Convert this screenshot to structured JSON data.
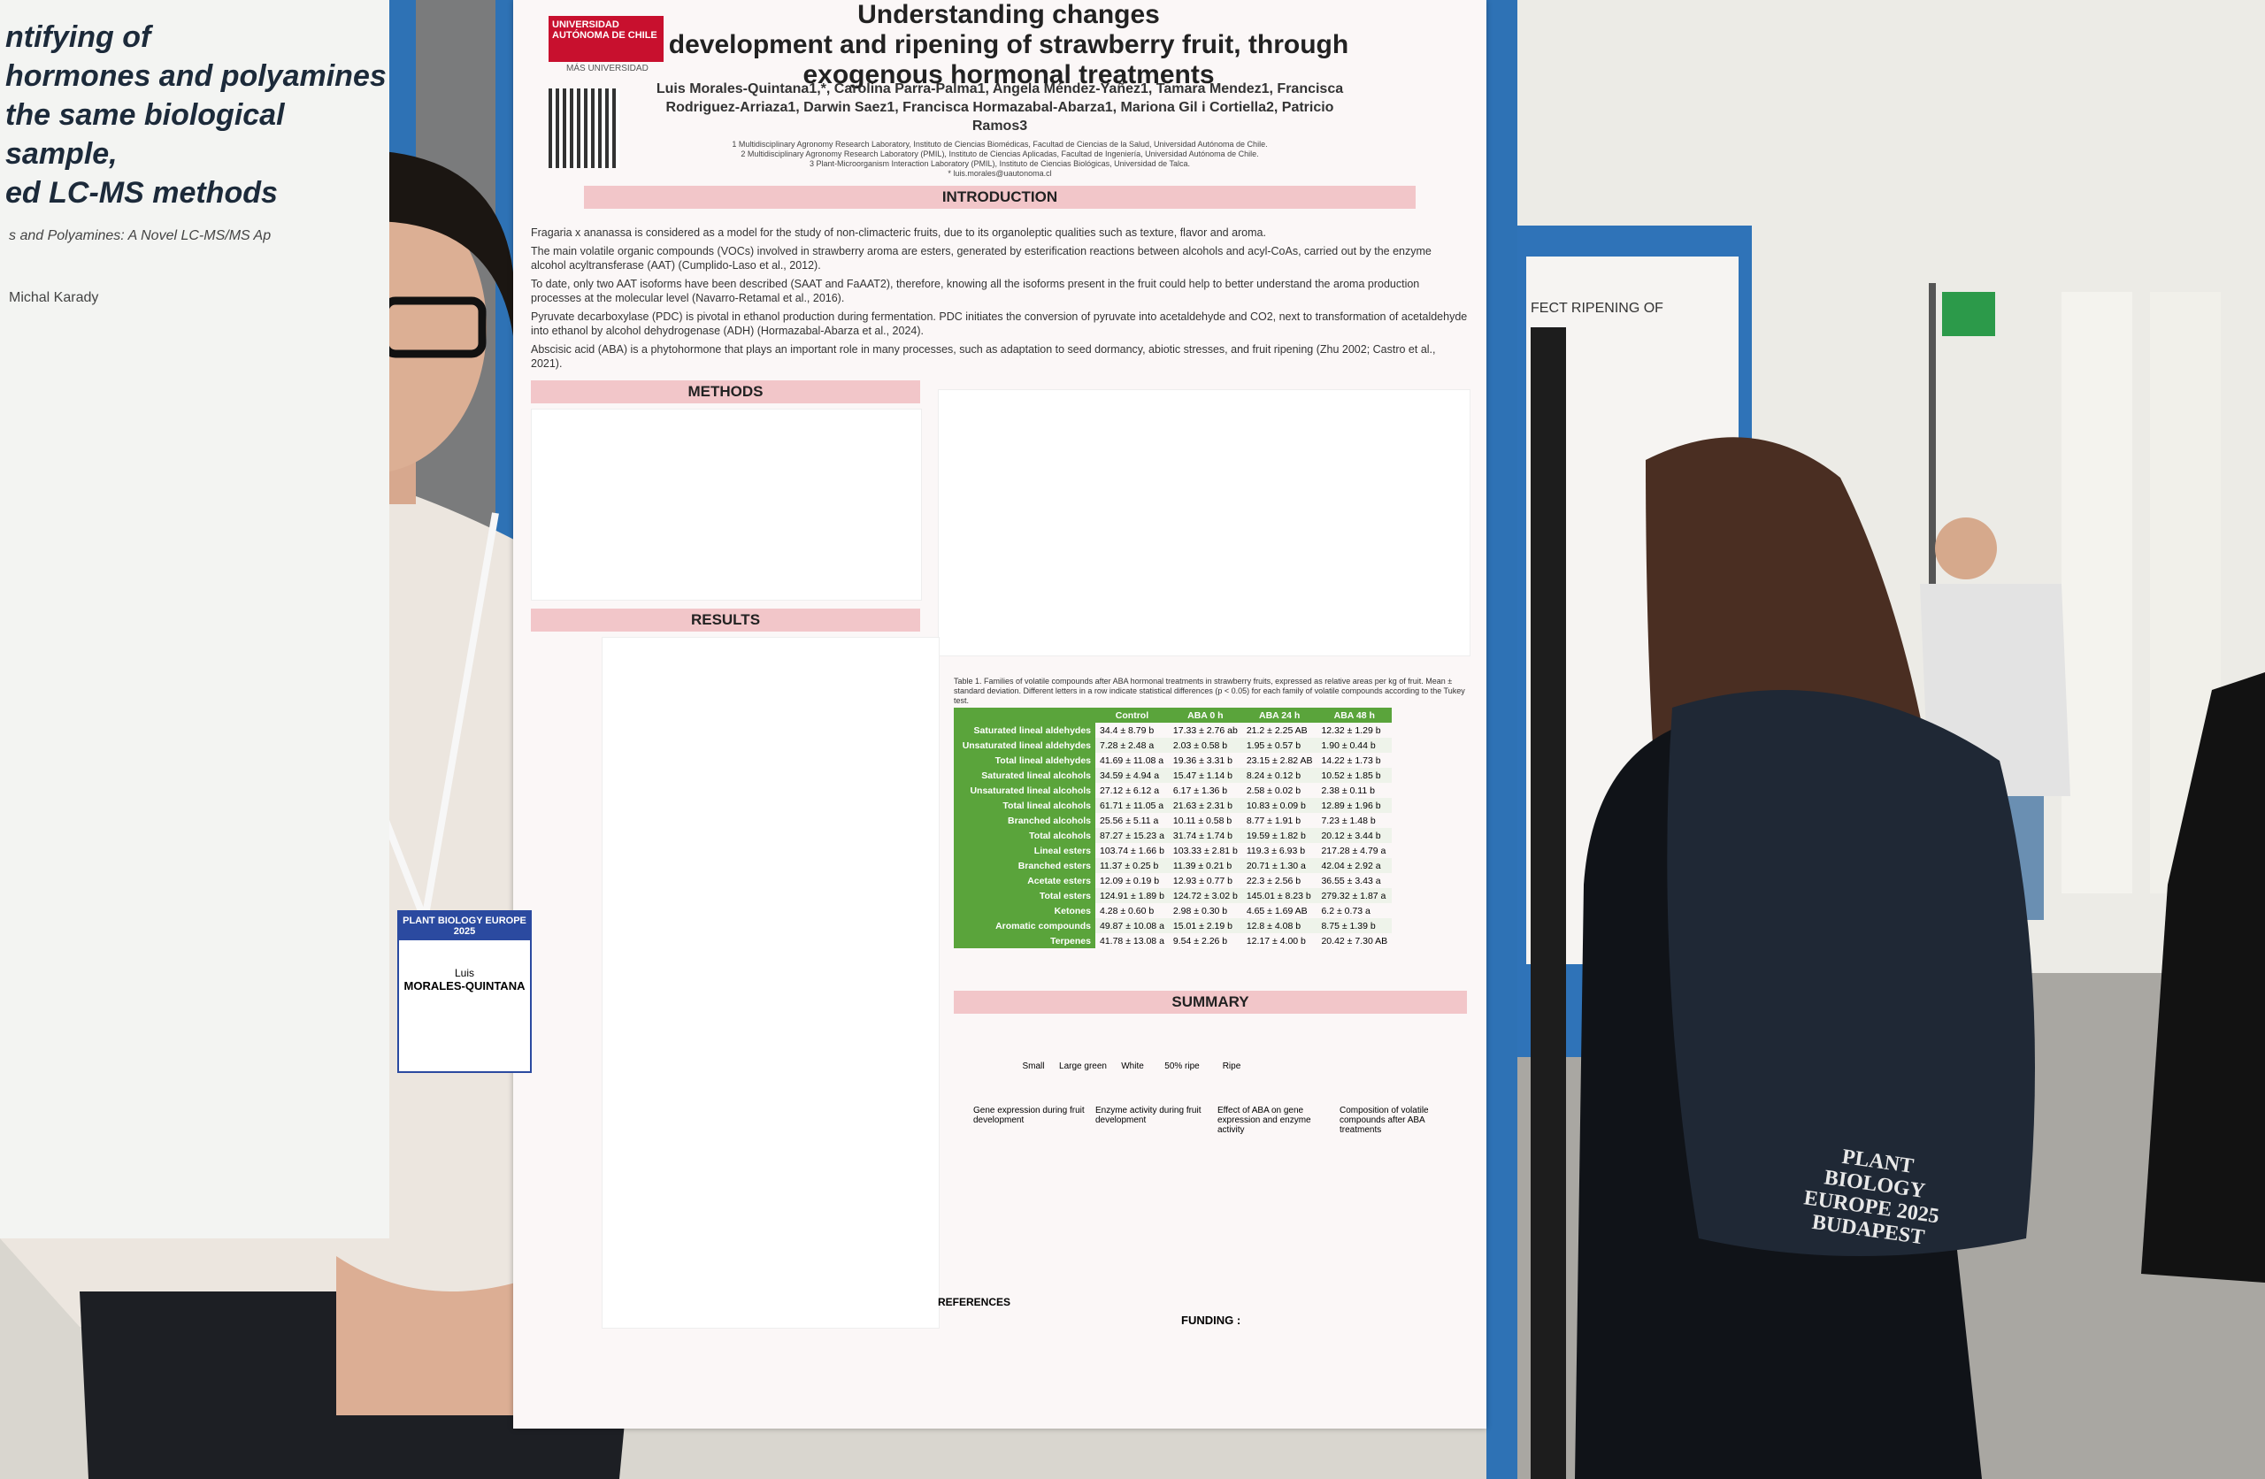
{
  "left_poster": {
    "title_lines": [
      "ntifying of",
      "hormones and polyamines",
      "the same biological sample,",
      "ed LC-MS methods"
    ],
    "subtitle": "s and Polyamines: A Novel LC-MS/MS Ap",
    "author": "Michal Karady"
  },
  "poster": {
    "title_lines": [
      "Understanding changes",
      "development and ripening of strawberry fruit, through",
      "exogenous hormonal treatments"
    ],
    "university": "UNIVERSIDAD AUTÓNOMA DE CHILE",
    "tagline": "MÁS UNIVERSIDAD",
    "authors": "Luis Morales-Quintana1,*, Carolina Parra-Palma1, Angela Méndez-Yañez1, Tamara Mendez1, Francisca Rodriguez-Arriaza1, Darwin Saez1, Francisca Hormazabal-Abarza1, Mariona Gil i Cortiella2, Patricio Ramos3",
    "affiliations": [
      "1 Multidisciplinary Agronomy Research Laboratory, Instituto de Ciencias Biomédicas, Facultad de Ciencias de la Salud, Universidad Autónoma de Chile.",
      "2 Multidisciplinary Agronomy Research Laboratory (PMIL), Instituto de Ciencias Aplicadas, Facultad de Ingeniería, Universidad Autónoma de Chile.",
      "3 Plant-Microorganism Interaction Laboratory (PMIL), Instituto de Ciencias Biológicas, Universidad de Talca.",
      "* luis.morales@uautonoma.cl"
    ],
    "headings": {
      "introduction": "INTRODUCTION",
      "methods": "METHODS",
      "results": "RESULTS",
      "summary": "SUMMARY",
      "references": "REFERENCES",
      "funding": "FUNDING :"
    },
    "intro_bullets": [
      "Fragaria x ananassa is considered as a model for the study of non-climacteric fruits, due to its organoleptic qualities such as texture, flavor and aroma.",
      "The main volatile organic compounds (VOCs) involved in strawberry aroma are esters, generated by esterification reactions between alcohols and acyl-CoAs, carried out by the enzyme alcohol acyltransferase (AAT) (Cumplido-Laso et al., 2012).",
      "To date, only two AAT isoforms have been described (SAAT and FaAAT2), therefore, knowing all the isoforms present in the fruit could help to better understand the aroma production processes at the molecular level (Navarro-Retamal et al., 2016).",
      "Pyruvate decarboxylase (PDC) is pivotal in ethanol production during fermentation. PDC initiates the conversion of pyruvate into acetaldehyde and CO2, next to transformation of acetaldehyde into ethanol by alcohol dehydrogenase (ADH) (Hormazabal-Abarza et al., 2024).",
      "Abscisic acid (ABA) is a phytohormone that plays an important role in many processes, such as adaptation to seed dormancy, abiotic stresses, and fruit ripening (Zhu 2002; Castro et al., 2021)."
    ],
    "table": {
      "caption": "Table 1. Families of volatile compounds after ABA hormonal treatments in strawberry fruits, expressed as relative areas per kg of fruit. Mean ± standard deviation. Different letters in a row indicate statistical differences (p < 0.05) for each family of volatile compounds according to the Tukey test.",
      "header": [
        "Control",
        "ABA 0 h",
        "ABA 24 h",
        "ABA 48 h"
      ],
      "rows": [
        [
          "Saturated lineal aldehydes",
          "34.4 ± 8.79 b",
          "17.33 ± 2.76 ab",
          "21.2 ± 2.25 AB",
          "12.32 ± 1.29 b"
        ],
        [
          "Unsaturated lineal aldehydes",
          "7.28 ± 2.48 a",
          "2.03 ± 0.58 b",
          "1.95 ± 0.57 b",
          "1.90 ± 0.44 b"
        ],
        [
          "Total lineal aldehydes",
          "41.69 ± 11.08 a",
          "19.36 ± 3.31 b",
          "23.15 ± 2.82 AB",
          "14.22 ± 1.73 b"
        ],
        [
          "Saturated lineal alcohols",
          "34.59 ± 4.94 a",
          "15.47 ± 1.14 b",
          "8.24 ± 0.12 b",
          "10.52 ± 1.85 b"
        ],
        [
          "Unsaturated lineal alcohols",
          "27.12 ± 6.12 a",
          "6.17 ± 1.36 b",
          "2.58 ± 0.02 b",
          "2.38 ± 0.11 b"
        ],
        [
          "Total lineal alcohols",
          "61.71 ± 11.05 a",
          "21.63 ± 2.31 b",
          "10.83 ± 0.09 b",
          "12.89 ± 1.96 b"
        ],
        [
          "Branched alcohols",
          "25.56 ± 5.11 a",
          "10.11 ± 0.58 b",
          "8.77 ± 1.91 b",
          "7.23 ± 1.48 b"
        ],
        [
          "Total alcohols",
          "87.27 ± 15.23 a",
          "31.74 ± 1.74 b",
          "19.59 ± 1.82 b",
          "20.12 ± 3.44 b"
        ],
        [
          "Lineal esters",
          "103.74 ± 1.66 b",
          "103.33 ± 2.81 b",
          "119.3 ± 6.93 b",
          "217.28 ± 4.79 a"
        ],
        [
          "Branched esters",
          "11.37 ± 0.25 b",
          "11.39 ± 0.21 b",
          "20.71 ± 1.30 a",
          "42.04 ± 2.92 a"
        ],
        [
          "Acetate esters",
          "12.09 ± 0.19 b",
          "12.93 ± 0.77 b",
          "22.3 ± 2.56 b",
          "36.55 ± 3.43 a"
        ],
        [
          "Total esters",
          "124.91 ± 1.89 b",
          "124.72 ± 3.02 b",
          "145.01 ± 8.23 b",
          "279.32 ± 1.87 a"
        ],
        [
          "Ketones",
          "4.28 ± 0.60 b",
          "2.98 ± 0.30 b",
          "4.65 ± 1.69 AB",
          "6.2 ± 0.73 a"
        ],
        [
          "Aromatic compounds",
          "49.87 ± 10.08 a",
          "15.01 ± 2.19 b",
          "12.8 ± 4.08 b",
          "8.75 ± 1.39 b"
        ],
        [
          "Terpenes",
          "41.78 ± 13.08 a",
          "9.54 ± 2.26 b",
          "12.17 ± 4.00 b",
          "20.42 ± 7.30 AB"
        ]
      ]
    },
    "summary_stages": [
      "Small",
      "Large green",
      "White",
      "50% ripe",
      "Ripe"
    ],
    "summary_labels": [
      "Gene expression during fruit development",
      "Enzyme activity during fruit development",
      "Effect of ABA on gene expression and enzyme activity",
      "Composition of volatile compounds after ABA treatments"
    ]
  },
  "right_poster": {
    "title": "FECT RIPENING OF"
  },
  "badge": {
    "event": "PLANT BIOLOGY EUROPE 2025",
    "first_name": "Luis",
    "last_name": "MORALES-QUINTANA"
  },
  "backpack": {
    "lines": [
      "PLANT",
      "BIOLOGY",
      "EUROPE 2025",
      "BUDAPEST"
    ]
  }
}
